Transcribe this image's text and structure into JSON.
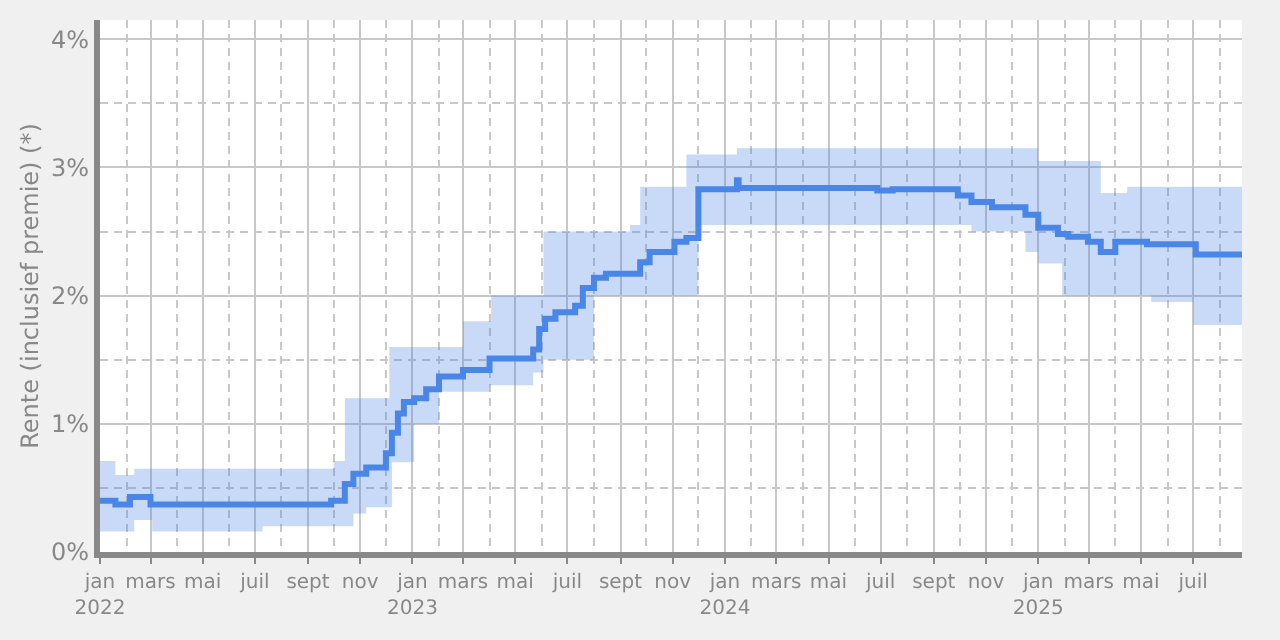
{
  "chart_data": {
    "type": "step",
    "ylabel": "Rente (inclusief premie) (*)",
    "xlim": [
      "2022-01-01",
      "2025-08-27"
    ],
    "ylim": [
      0,
      4.15
    ],
    "yticks": [
      {
        "value": 0,
        "label": "0%"
      },
      {
        "value": 0.5,
        "label": null
      },
      {
        "value": 1,
        "label": "1%"
      },
      {
        "value": 1.5,
        "label": null
      },
      {
        "value": 2,
        "label": "2%"
      },
      {
        "value": 2.5,
        "label": null
      },
      {
        "value": 3,
        "label": "3%"
      },
      {
        "value": 3.5,
        "label": null
      },
      {
        "value": 4,
        "label": "4%"
      }
    ],
    "xticks": [
      {
        "value": "2022-01-01",
        "label": "jan\n2022"
      },
      {
        "value": "2022-02-01",
        "label": null
      },
      {
        "value": "2022-03-01",
        "label": "mars"
      },
      {
        "value": "2022-04-01",
        "label": null
      },
      {
        "value": "2022-05-01",
        "label": "mai"
      },
      {
        "value": "2022-06-01",
        "label": null
      },
      {
        "value": "2022-07-01",
        "label": "juil"
      },
      {
        "value": "2022-08-01",
        "label": null
      },
      {
        "value": "2022-09-01",
        "label": "sept"
      },
      {
        "value": "2022-10-01",
        "label": null
      },
      {
        "value": "2022-11-01",
        "label": "nov"
      },
      {
        "value": "2022-12-01",
        "label": null
      },
      {
        "value": "2023-01-01",
        "label": "jan\n2023"
      },
      {
        "value": "2023-02-01",
        "label": null
      },
      {
        "value": "2023-03-01",
        "label": "mars"
      },
      {
        "value": "2023-04-01",
        "label": null
      },
      {
        "value": "2023-05-01",
        "label": "mai"
      },
      {
        "value": "2023-06-01",
        "label": null
      },
      {
        "value": "2023-07-01",
        "label": "juil"
      },
      {
        "value": "2023-08-01",
        "label": null
      },
      {
        "value": "2023-09-01",
        "label": "sept"
      },
      {
        "value": "2023-10-01",
        "label": null
      },
      {
        "value": "2023-11-01",
        "label": "nov"
      },
      {
        "value": "2023-12-01",
        "label": null
      },
      {
        "value": "2024-01-01",
        "label": "jan\n2024"
      },
      {
        "value": "2024-02-01",
        "label": null
      },
      {
        "value": "2024-03-01",
        "label": "mars"
      },
      {
        "value": "2024-04-01",
        "label": null
      },
      {
        "value": "2024-05-01",
        "label": "mai"
      },
      {
        "value": "2024-06-01",
        "label": null
      },
      {
        "value": "2024-07-01",
        "label": "juil"
      },
      {
        "value": "2024-08-01",
        "label": null
      },
      {
        "value": "2024-09-01",
        "label": "sept"
      },
      {
        "value": "2024-10-01",
        "label": null
      },
      {
        "value": "2024-11-01",
        "label": "nov"
      },
      {
        "value": "2024-12-01",
        "label": null
      },
      {
        "value": "2025-01-01",
        "label": "jan\n2025"
      },
      {
        "value": "2025-02-01",
        "label": null
      },
      {
        "value": "2025-03-01",
        "label": "mars"
      },
      {
        "value": "2025-04-01",
        "label": null
      },
      {
        "value": "2025-05-01",
        "label": "mai"
      },
      {
        "value": "2025-06-01",
        "label": null
      },
      {
        "value": "2025-07-01",
        "label": "juil"
      },
      {
        "value": "2025-08-01",
        "label": null
      }
    ],
    "grid": true,
    "series": [
      {
        "color": "#4a86e8",
        "x": [
          "2022-01-01",
          "2022-01-19",
          "2022-02-05",
          "2022-02-10",
          "2022-03-01",
          "2022-03-03",
          "2022-07-10",
          "2022-09-28",
          "2022-10-01",
          "2022-10-14",
          "2022-10-24",
          "2022-11-08",
          "2022-12-01",
          "2022-12-05",
          "2022-12-08",
          "2022-12-15",
          "2022-12-22",
          "2023-01-03",
          "2023-01-17",
          "2023-02-01",
          "2023-03-01",
          "2023-04-01",
          "2023-04-03",
          "2023-05-22",
          "2023-05-29",
          "2023-06-03",
          "2023-06-05",
          "2023-06-17",
          "2023-07-10",
          "2023-07-19",
          "2023-08-01",
          "2023-08-15",
          "2023-09-01",
          "2023-09-12",
          "2023-09-24",
          "2023-10-05",
          "2023-11-03",
          "2023-11-17",
          "2023-12-01",
          "2024-01-15",
          "2024-01-17",
          "2024-06-27",
          "2024-07-15",
          "2024-09-29",
          "2024-10-15",
          "2024-11-08",
          "2024-12-17",
          "2025-01-01",
          "2025-01-24",
          "2025-01-29",
          "2025-02-05",
          "2025-02-28",
          "2025-03-15",
          "2025-04-01",
          "2025-04-15",
          "2025-05-08",
          "2025-05-13",
          "2025-07-01",
          "2025-07-04",
          "2025-08-27"
        ],
        "values": [
          0.4,
          0.37,
          0.43,
          0.43,
          0.37,
          0.37,
          0.37,
          0.4,
          0.4,
          0.53,
          0.61,
          0.66,
          0.77,
          0.77,
          0.93,
          1.08,
          1.17,
          1.2,
          1.27,
          1.37,
          1.42,
          1.51,
          1.51,
          1.58,
          1.74,
          1.74,
          1.82,
          1.87,
          1.92,
          2.06,
          2.14,
          2.17,
          2.17,
          2.17,
          2.26,
          2.34,
          2.42,
          2.45,
          2.83,
          2.9,
          2.84,
          2.82,
          2.83,
          2.78,
          2.73,
          2.69,
          2.63,
          2.53,
          2.48,
          2.48,
          2.46,
          2.42,
          2.34,
          2.42,
          2.42,
          2.4,
          2.4,
          2.4,
          2.32,
          2.32
        ],
        "lower": [
          0.16,
          0.16,
          0.16,
          0.25,
          0.25,
          0.16,
          0.2,
          0.2,
          0.2,
          0.2,
          0.3,
          0.35,
          0.35,
          0.35,
          0.7,
          0.7,
          0.7,
          1.0,
          1.0,
          1.25,
          1.25,
          1.3,
          1.3,
          1.4,
          1.4,
          1.5,
          1.5,
          1.5,
          1.5,
          1.5,
          2.0,
          2.0,
          2.0,
          2.0,
          2.0,
          2.0,
          2.0,
          2.0,
          2.55,
          2.55,
          2.55,
          2.55,
          2.55,
          2.55,
          2.5,
          2.5,
          2.34,
          2.25,
          2.25,
          2.0,
          2.0,
          2.0,
          2.0,
          2.0,
          2.0,
          2.0,
          1.95,
          1.77,
          1.77,
          1.77
        ],
        "upper": [
          0.71,
          0.6,
          0.6,
          0.65,
          0.65,
          0.65,
          0.65,
          0.65,
          0.71,
          1.2,
          1.2,
          1.2,
          1.2,
          1.6,
          1.6,
          1.6,
          1.6,
          1.6,
          1.6,
          1.6,
          1.8,
          1.8,
          2.0,
          2.0,
          2.0,
          2.5,
          2.5,
          2.5,
          2.5,
          2.5,
          2.5,
          2.5,
          2.5,
          2.55,
          2.85,
          2.85,
          2.85,
          3.1,
          3.1,
          3.15,
          3.15,
          3.15,
          3.15,
          3.15,
          3.15,
          3.15,
          3.15,
          3.05,
          3.05,
          3.05,
          3.05,
          3.05,
          2.8,
          2.8,
          2.85,
          2.85,
          2.85,
          2.85,
          2.85,
          2.85
        ]
      }
    ]
  }
}
